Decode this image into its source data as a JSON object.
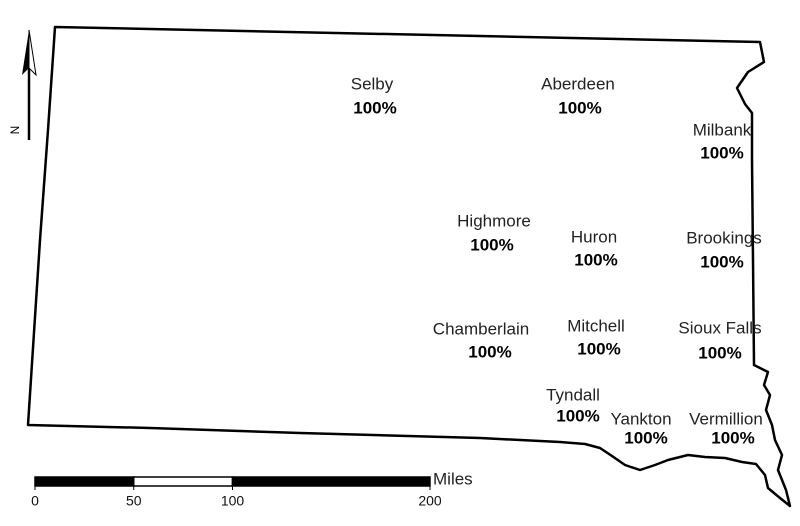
{
  "cities": [
    {
      "name": "Selby",
      "value": "100%"
    },
    {
      "name": "Aberdeen",
      "value": "100%"
    },
    {
      "name": "Milbank",
      "value": "100%"
    },
    {
      "name": "Highmore",
      "value": "100%"
    },
    {
      "name": "Huron",
      "value": "100%"
    },
    {
      "name": "Brookings",
      "value": "100%"
    },
    {
      "name": "Chamberlain",
      "value": "100%"
    },
    {
      "name": "Mitchell",
      "value": "100%"
    },
    {
      "name": "Sioux Falls",
      "value": "100%"
    },
    {
      "name": "Tyndall",
      "value": "100%"
    },
    {
      "name": "Yankton",
      "value": "100%"
    },
    {
      "name": "Vermillion",
      "value": "100%"
    }
  ],
  "scale": {
    "ticks": [
      0,
      50,
      100,
      200
    ],
    "unit": "Miles"
  },
  "north": "N"
}
